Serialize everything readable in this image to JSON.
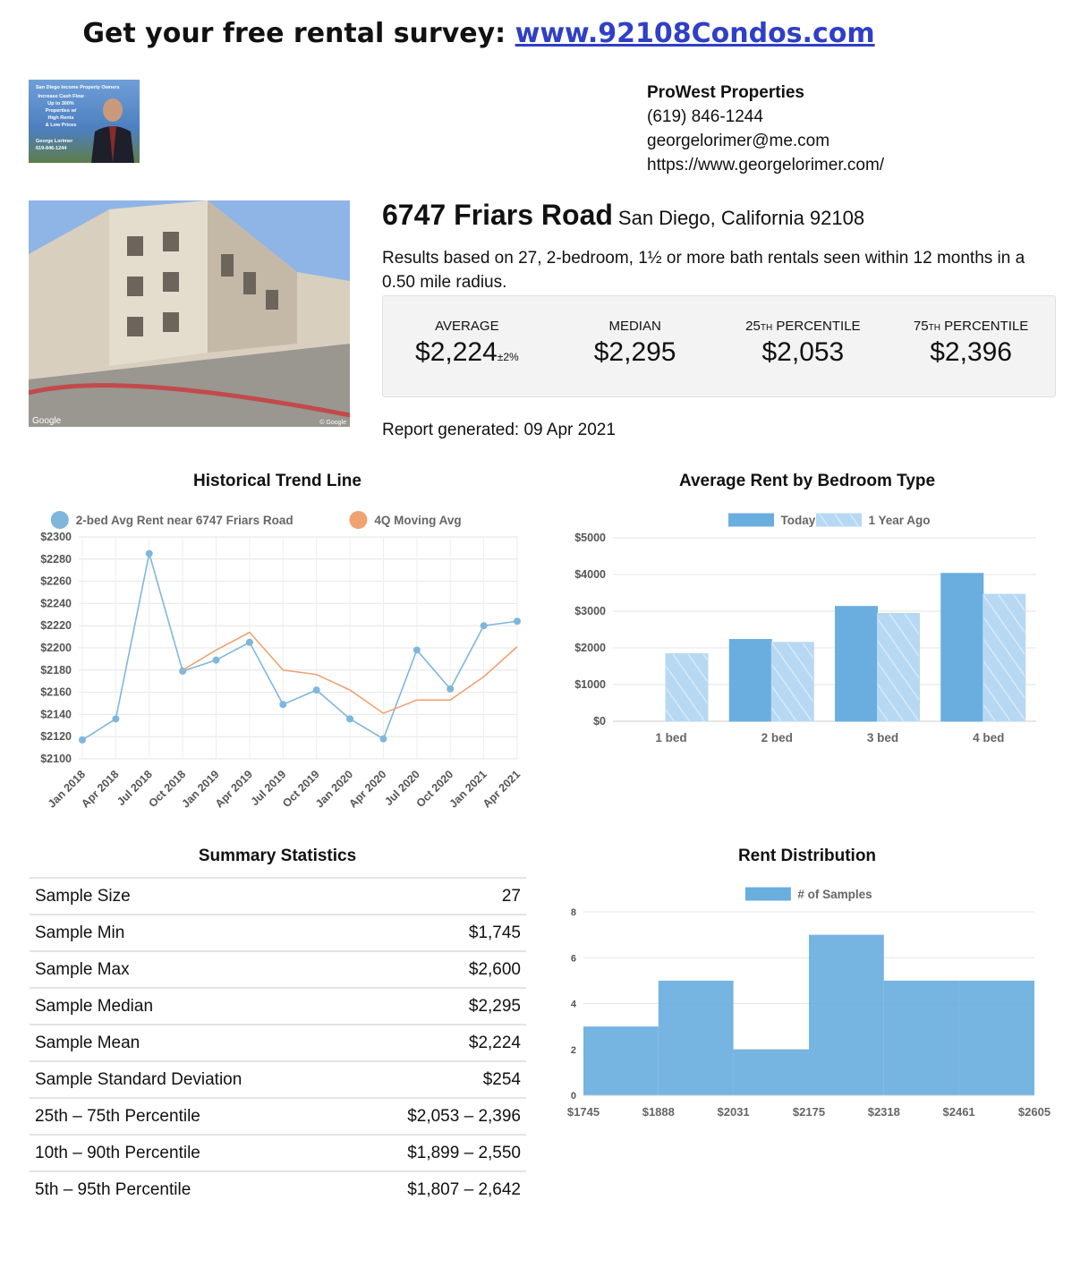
{
  "header": {
    "text": "Get your free rental survey:",
    "link": "www.92108Condos.com"
  },
  "ad": {
    "lines": [
      "San Diego Income Property Owners",
      "Increase Cash Flow",
      "Up to 300%",
      "Properties w/",
      "High Rents",
      "& Low Prices",
      "George Lorimer",
      "619-846-1244"
    ]
  },
  "contact": {
    "company": "ProWest Properties",
    "phone": "(619) 846-1244",
    "email": "georgelorimer@me.com",
    "website": "https://www.georgelorimer.com/"
  },
  "photo": {
    "watermark": "Google",
    "credit": "© Google"
  },
  "property": {
    "street": "6747 Friars Road",
    "city": "San Diego, California 92108",
    "description": "Results based on 27, 2-bedroom, 1½ or more bath rentals seen within 12 months in a 0.50 mile radius.",
    "stats": [
      {
        "label": "AVERAGE",
        "value": "$2,224",
        "note": "±2%"
      },
      {
        "label": "MEDIAN",
        "value": "$2,295"
      },
      {
        "num": "25",
        "suffix": "TH",
        "label": "PERCENTILE",
        "value": "$2,053"
      },
      {
        "num": "75",
        "suffix": "TH",
        "label": "PERCENTILE",
        "value": "$2,396"
      }
    ],
    "report": "Report generated: 09 Apr 2021"
  },
  "chart_data": [
    {
      "type": "line",
      "title": "Historical Trend Line",
      "categories": [
        "Jan 2018",
        "Apr 2018",
        "Jul 2018",
        "Oct 2018",
        "Jan 2019",
        "Apr 2019",
        "Jul 2019",
        "Oct 2019",
        "Jan 2020",
        "Apr 2020",
        "Jul 2020",
        "Oct 2020",
        "Jan 2021",
        "Apr 2021"
      ],
      "series": [
        {
          "name": "2-bed Avg Rent near 6747 Friars Road",
          "color": "#7fb7dc",
          "values": [
            2117,
            2136,
            2285,
            2179,
            2189,
            2205,
            2149,
            2162,
            2136,
            2118,
            2198,
            2163,
            2220,
            2224
          ]
        },
        {
          "name": "4Q Moving Avg",
          "color": "#f0a272",
          "values": [
            null,
            null,
            null,
            2180,
            2198,
            2214,
            2180,
            2176,
            2162,
            2141,
            2153,
            2153,
            2174,
            2201
          ]
        }
      ],
      "ylim": [
        2100,
        2300
      ],
      "yticks": [
        {
          "value": 2100,
          "label": "$2100"
        },
        {
          "value": 2120,
          "label": "$2120"
        },
        {
          "value": 2140,
          "label": "$2140"
        },
        {
          "value": 2160,
          "label": "$2160"
        },
        {
          "value": 2180,
          "label": "$2180"
        },
        {
          "value": 2200,
          "label": "$2200"
        },
        {
          "value": 2220,
          "label": "$2220"
        },
        {
          "value": 2240,
          "label": "$2240"
        },
        {
          "value": 2260,
          "label": "$2260"
        },
        {
          "value": 2280,
          "label": "$2280"
        },
        {
          "value": 2300,
          "label": "$2300"
        }
      ],
      "grid": true
    },
    {
      "type": "bar",
      "title": "Average Rent by Bedroom Type",
      "categories": [
        "1 bed",
        "2 bed",
        "3 bed",
        "4 bed"
      ],
      "series": [
        {
          "name": "Today",
          "color": "#6aaee0",
          "values": [
            null,
            2230,
            3130,
            4030
          ]
        },
        {
          "name": "1 Year Ago",
          "color": "#b7d8f3",
          "values": [
            1840,
            2150,
            2940,
            3460
          ]
        }
      ],
      "ylim": [
        0,
        5000
      ],
      "yticks": [
        {
          "value": 0,
          "label": "$0"
        },
        {
          "value": 1000,
          "label": "$1000"
        },
        {
          "value": 2000,
          "label": "$2000"
        },
        {
          "value": 3000,
          "label": "$3000"
        },
        {
          "value": 4000,
          "label": "$4000"
        },
        {
          "value": 5000,
          "label": "$5000"
        }
      ],
      "grid": true
    },
    {
      "type": "histogram",
      "title": "Rent Distribution",
      "series": [
        {
          "name": "# of Samples",
          "color": "#6aaee0",
          "values": [
            3,
            5,
            2,
            7,
            5,
            5
          ]
        }
      ],
      "bins": [
        {
          "value": 1745,
          "label": "$1745"
        },
        {
          "value": 1888,
          "label": "$1888"
        },
        {
          "value": 2031,
          "label": "$2031"
        },
        {
          "value": 2175,
          "label": "$2175"
        },
        {
          "value": 2318,
          "label": "$2318"
        },
        {
          "value": 2461,
          "label": "$2461"
        },
        {
          "value": 2605,
          "label": "$2605"
        }
      ],
      "ylim": [
        0,
        8
      ],
      "yticks": [
        0,
        2,
        4,
        6,
        8
      ],
      "grid": true
    }
  ],
  "table": {
    "title": "Summary Statistics",
    "rows": [
      [
        "Sample Size",
        "27"
      ],
      [
        "Sample Min",
        "$1,745"
      ],
      [
        "Sample Max",
        "$2,600"
      ],
      [
        "Sample Median",
        "$2,295"
      ],
      [
        "Sample Mean",
        "$2,224"
      ],
      [
        "Sample Standard Deviation",
        "$254"
      ],
      [
        "25th – 75th Percentile",
        "$2,053 – 2,396"
      ],
      [
        "10th – 90th Percentile",
        "$1,899 – 2,550"
      ],
      [
        "5th – 95th Percentile",
        "$1,807 – 2,642"
      ]
    ]
  }
}
